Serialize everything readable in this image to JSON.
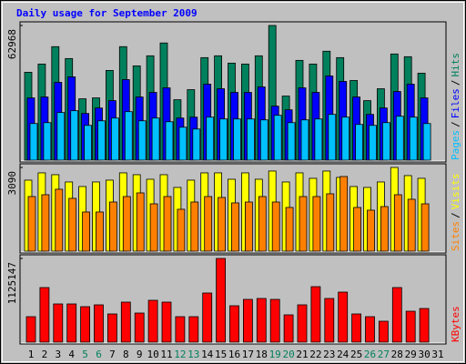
{
  "title": "Daily usage for September 2009",
  "legend_separator": "/",
  "chart_data": [
    {
      "type": "bar",
      "ylim": [
        0,
        62968
      ],
      "yticks": [
        62968
      ],
      "series": [
        {
          "name": "Hits",
          "color": "#00805c",
          "values": [
            41088,
            44940,
            53072,
            47508,
            28676,
            29104,
            41944,
            53072,
            44084,
            48792,
            54784,
            28248,
            32956,
            47936,
            48792,
            45368,
            44940,
            48792,
            62968,
            29960,
            46652,
            44940,
            50932,
            47936,
            37236,
            27820,
            33384,
            49648,
            48364,
            40660,
            null
          ]
        },
        {
          "name": "Files",
          "color": "#0000ff",
          "values": [
            29104,
            29532,
            36380,
            38948,
            21828,
            24396,
            27820,
            37664,
            29532,
            31672,
            33812,
            19688,
            20116,
            35524,
            33384,
            31672,
            31672,
            34240,
            25252,
            23540,
            33812,
            31672,
            39376,
            36808,
            29532,
            21400,
            24396,
            32100,
            35524,
            29104,
            null
          ]
        },
        {
          "name": "Pages",
          "color": "#00c0ff",
          "values": [
            17120,
            17548,
            22256,
            23112,
            16264,
            18404,
            19688,
            22684,
            18404,
            19688,
            17976,
            15408,
            14552,
            20116,
            19260,
            19260,
            19260,
            18832,
            20972,
            17548,
            18832,
            19260,
            21400,
            20116,
            16692,
            16264,
            17548,
            20544,
            20116,
            17120,
            null
          ]
        }
      ]
    },
    {
      "type": "bar",
      "ylim": [
        0,
        3090
      ],
      "yticks": [
        3090
      ],
      "series": [
        {
          "name": "Visits",
          "color": "#ffff00",
          "values": [
            2621,
            2890,
            2822,
            2554,
            2386,
            2554,
            2621,
            2890,
            2822,
            2654,
            2822,
            2352,
            2621,
            2890,
            2890,
            2654,
            2890,
            2654,
            2957,
            2554,
            2890,
            2688,
            2957,
            2722,
            2386,
            2352,
            2554,
            3090,
            2789,
            2688,
            null
          ]
        },
        {
          "name": "Sites",
          "color": "#ff8000",
          "values": [
            2016,
            2083,
            2285,
            1949,
            1445,
            1445,
            1814,
            2016,
            2150,
            1747,
            2016,
            1546,
            1814,
            2016,
            1982,
            1781,
            1814,
            2016,
            1814,
            1613,
            2016,
            2016,
            2117,
            2755,
            1613,
            1512,
            1646,
            2083,
            1915,
            1747,
            null
          ]
        }
      ]
    },
    {
      "type": "bar",
      "ylim": [
        0,
        1125147
      ],
      "yticks": [
        1125147
      ],
      "categories": [
        "1",
        "2",
        "3",
        "4",
        "5",
        "6",
        "7",
        "8",
        "9",
        "10",
        "11",
        "12",
        "13",
        "14",
        "15",
        "16",
        "17",
        "18",
        "19",
        "20",
        "21",
        "22",
        "23",
        "24",
        "25",
        "26",
        "27",
        "28",
        "29",
        "30",
        "31"
      ],
      "label_colors": [
        "#000000",
        "#000000",
        "#000000",
        "#000000",
        "#00805c",
        "#00805c",
        "#000000",
        "#000000",
        "#000000",
        "#000000",
        "#000000",
        "#00805c",
        "#00805c",
        "#000000",
        "#000000",
        "#000000",
        "#000000",
        "#000000",
        "#00805c",
        "#00805c",
        "#000000",
        "#000000",
        "#000000",
        "#000000",
        "#000000",
        "#00805c",
        "#00805c",
        "#000000",
        "#000000",
        "#000000",
        "#000000"
      ],
      "series": [
        {
          "name": "KBytes",
          "color": "#ff0000",
          "values": [
            342440,
            733800,
            513660,
            513660,
            476970,
            501430,
            379130,
            538120,
            391360,
            562580,
            538120,
            342440,
            342440,
            660420,
            1125147,
            489200,
            574810,
            587040,
            574810,
            366900,
            501430,
            746030,
            587040,
            672650,
            379130,
            342440,
            281290,
            733800,
            415820,
            452510,
            null
          ]
        }
      ]
    }
  ]
}
